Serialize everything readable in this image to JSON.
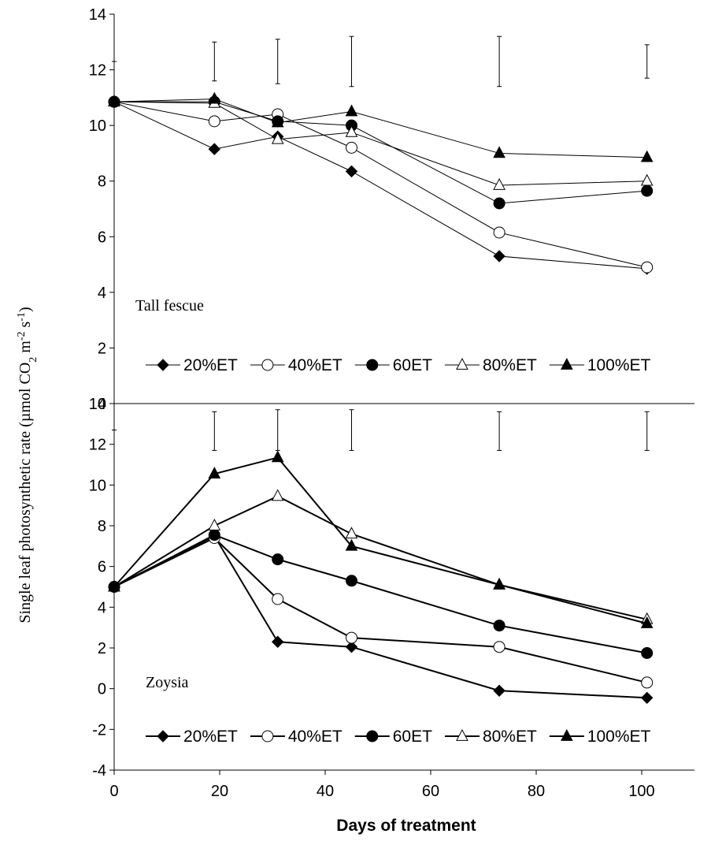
{
  "chart_data": [
    {
      "type": "line",
      "panel_label": "Tall fescue",
      "ylim": [
        0,
        14
      ],
      "yticks": [
        0,
        2,
        4,
        6,
        8,
        10,
        12,
        14
      ],
      "error_bars": [
        {
          "x": 0,
          "low": 12.3,
          "high": 12.3
        },
        {
          "x": 19,
          "low": 11.6,
          "high": 13.0
        },
        {
          "x": 31,
          "low": 11.5,
          "high": 13.1
        },
        {
          "x": 45,
          "low": 11.4,
          "high": 13.2
        },
        {
          "x": 73,
          "low": 11.4,
          "high": 13.2
        },
        {
          "x": 101,
          "low": 11.7,
          "high": 12.9
        }
      ],
      "series": [
        {
          "name": "20%ET",
          "marker": "diamond",
          "fill": "#000000",
          "x": [
            0,
            19,
            31,
            45,
            73,
            101
          ],
          "values": [
            10.85,
            9.15,
            9.6,
            8.35,
            5.3,
            4.85
          ]
        },
        {
          "name": "40%ET",
          "marker": "circle",
          "fill": "#ffffff",
          "x": [
            0,
            19,
            31,
            45,
            73,
            101
          ],
          "values": [
            10.85,
            10.15,
            10.4,
            9.2,
            6.15,
            4.9
          ]
        },
        {
          "name": "60ET",
          "marker": "circle",
          "fill": "#000000",
          "x": [
            0,
            19,
            31,
            45,
            73,
            101
          ],
          "values": [
            10.85,
            10.85,
            10.15,
            10.0,
            7.2,
            7.65
          ]
        },
        {
          "name": "80%ET",
          "marker": "triangle",
          "fill": "#ffffff",
          "x": [
            0,
            19,
            31,
            45,
            73,
            101
          ],
          "values": [
            10.85,
            10.8,
            9.5,
            9.75,
            7.85,
            8.0
          ]
        },
        {
          "name": "100%ET",
          "marker": "triangle",
          "fill": "#000000",
          "x": [
            0,
            19,
            31,
            45,
            73,
            101
          ],
          "values": [
            10.85,
            10.95,
            10.1,
            10.5,
            9.0,
            8.85
          ]
        }
      ]
    },
    {
      "type": "line",
      "panel_label": "Zoysia",
      "ylim": [
        -4,
        14
      ],
      "yticks": [
        -4,
        -2,
        0,
        2,
        4,
        6,
        8,
        10,
        12,
        14
      ],
      "error_bars": [
        {
          "x": 0,
          "low": 12.7,
          "high": 12.7
        },
        {
          "x": 19,
          "low": 11.7,
          "high": 13.6
        },
        {
          "x": 31,
          "low": 11.7,
          "high": 13.7
        },
        {
          "x": 45,
          "low": 11.7,
          "high": 13.7
        },
        {
          "x": 73,
          "low": 11.7,
          "high": 13.6
        },
        {
          "x": 101,
          "low": 11.7,
          "high": 13.6
        }
      ],
      "series": [
        {
          "name": "20%ET",
          "marker": "diamond",
          "fill": "#000000",
          "x": [
            0,
            19,
            31,
            45,
            73,
            101
          ],
          "values": [
            5.0,
            7.5,
            2.3,
            2.05,
            -0.1,
            -0.45
          ]
        },
        {
          "name": "40%ET",
          "marker": "circle",
          "fill": "#ffffff",
          "x": [
            0,
            19,
            31,
            45,
            73,
            101
          ],
          "values": [
            5.0,
            7.4,
            4.4,
            2.5,
            2.05,
            0.3
          ]
        },
        {
          "name": "60ET",
          "marker": "circle",
          "fill": "#000000",
          "x": [
            0,
            19,
            31,
            45,
            73,
            101
          ],
          "values": [
            5.0,
            7.55,
            6.35,
            5.3,
            3.1,
            1.75
          ]
        },
        {
          "name": "80%ET",
          "marker": "triangle",
          "fill": "#ffffff",
          "x": [
            0,
            19,
            31,
            45,
            73,
            101
          ],
          "values": [
            5.0,
            8.0,
            9.45,
            7.6,
            5.1,
            3.4
          ]
        },
        {
          "name": "100%ET",
          "marker": "triangle",
          "fill": "#000000",
          "x": [
            0,
            19,
            31,
            45,
            73,
            101
          ],
          "values": [
            5.0,
            10.55,
            11.35,
            7.0,
            5.1,
            3.2
          ]
        }
      ]
    }
  ],
  "shared": {
    "xlim": [
      0,
      110
    ],
    "xticks": [
      0,
      20,
      40,
      60,
      80,
      100
    ],
    "xlabel": "Days of treatment",
    "ylabel": "Single leaf photosynthetic rate  (µmol CO",
    "ylabel_sub": "2",
    "ylabel_mid": " m",
    "ylabel_sup1": "-2",
    "ylabel_mid2": " s",
    "ylabel_sup2": "-1",
    "ylabel_end": ")",
    "legend_placement": "bottom-center"
  }
}
